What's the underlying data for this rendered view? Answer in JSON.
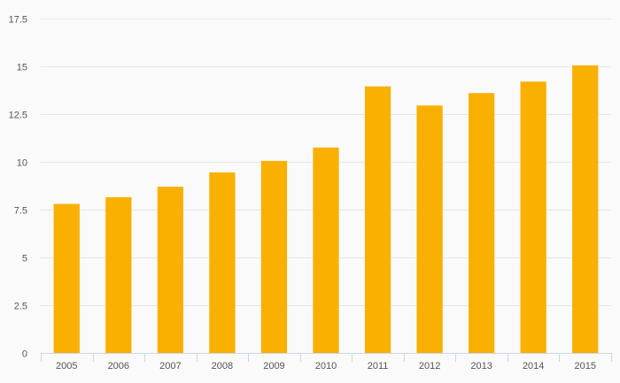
{
  "chart_data": {
    "type": "bar",
    "categories": [
      "2005",
      "2006",
      "2007",
      "2008",
      "2009",
      "2010",
      "2011",
      "2012",
      "2013",
      "2014",
      "2015"
    ],
    "values": [
      7.8,
      8.15,
      8.7,
      9.45,
      10.05,
      10.75,
      13.95,
      12.95,
      13.6,
      14.2,
      15.05
    ],
    "title": "",
    "xlabel": "",
    "ylabel": "",
    "ylim": [
      0,
      17.5
    ],
    "yticks": [
      "0",
      "2.5",
      "5",
      "7.5",
      "10",
      "12.5",
      "15",
      "17.5"
    ],
    "grid": true,
    "legend": "none",
    "colors": {
      "bar": "#f9b000",
      "grid": "#e6e6e6",
      "axis": "#ccd6eb",
      "text": "#555555",
      "background": "#fafafa"
    }
  }
}
